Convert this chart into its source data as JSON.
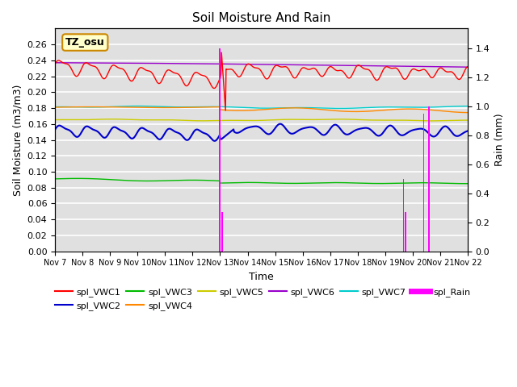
{
  "title": "Soil Moisture And Rain",
  "xlabel": "Time",
  "ylabel_left": "Soil Moisture (m3/m3)",
  "ylabel_right": "Rain (mm)",
  "annotation": "TZ_osu",
  "ylim_left": [
    0.0,
    0.28
  ],
  "ylim_right": [
    0.0,
    1.54
  ],
  "yticks_left": [
    0.0,
    0.02,
    0.04,
    0.06,
    0.08,
    0.1,
    0.12,
    0.14,
    0.16,
    0.18,
    0.2,
    0.22,
    0.24,
    0.26
  ],
  "yticks_right": [
    0.0,
    0.2,
    0.4,
    0.6,
    0.8,
    1.0,
    1.2,
    1.4
  ],
  "colors": {
    "VWC1": "#ff0000",
    "VWC2": "#0000cc",
    "VWC3": "#00bb00",
    "VWC4": "#ff8800",
    "VWC5": "#cccc00",
    "VWC6": "#9900cc",
    "VWC7": "#00cccc",
    "Rain": "#ff00ff"
  },
  "xtick_labels": [
    "Nov 7",
    "Nov 8",
    "Nov 9",
    "Nov 10",
    "Nov 11",
    "Nov 12",
    "Nov 13",
    "Nov 14",
    "Nov 15",
    "Nov 16",
    "Nov 17",
    "Nov 18",
    "Nov 19",
    "Nov 20",
    "Nov 21",
    "Nov 22"
  ],
  "background_color": "#e0e0e0"
}
